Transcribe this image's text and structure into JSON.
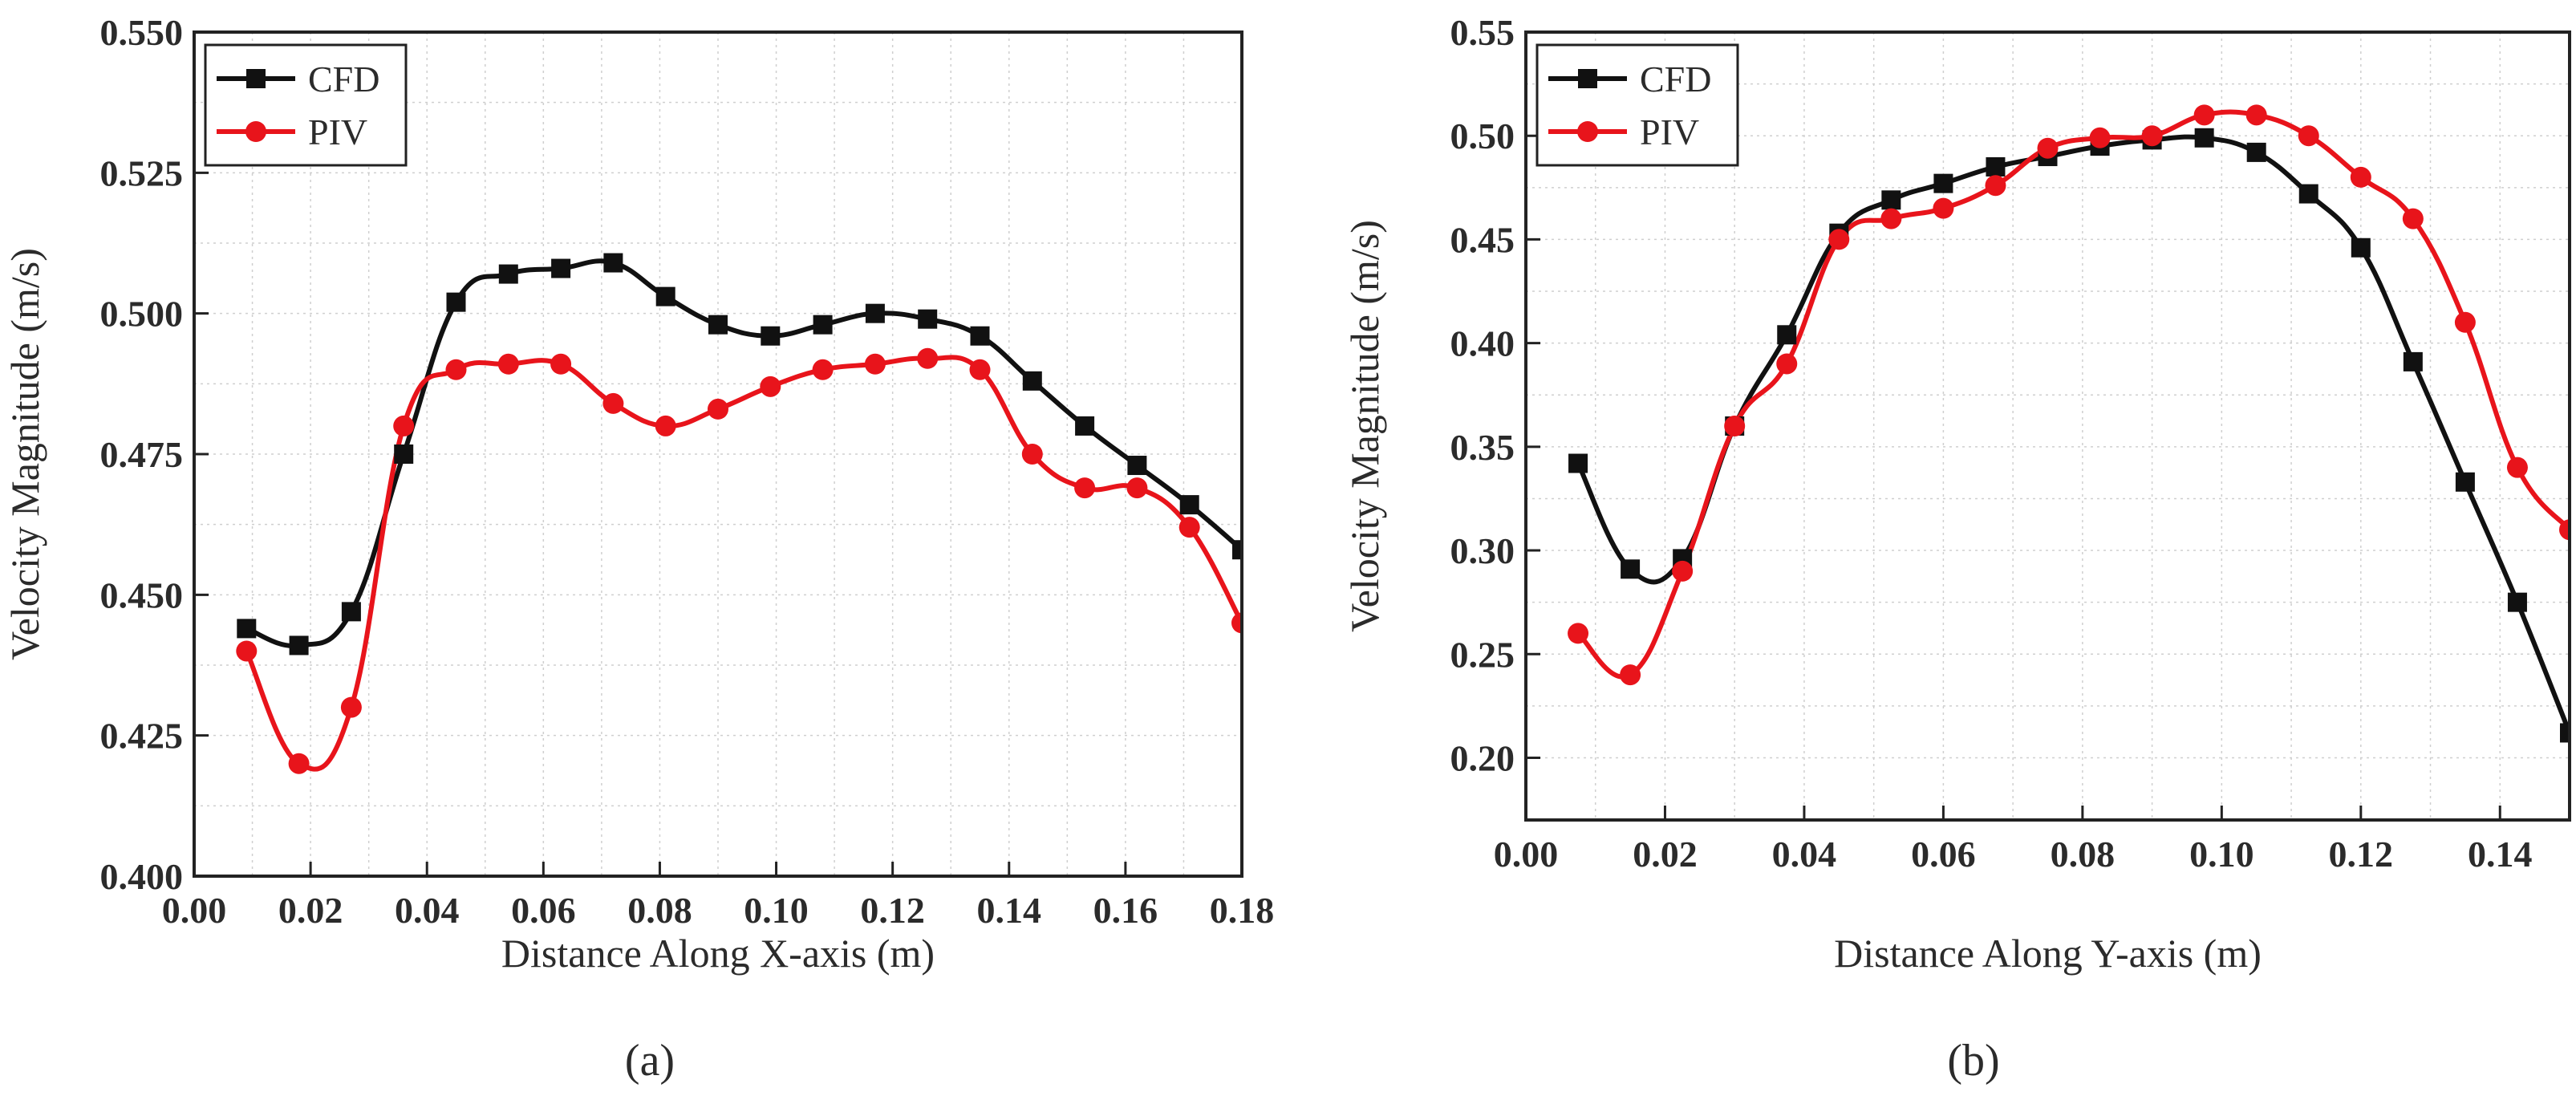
{
  "chart_data": [
    {
      "type": "line",
      "caption": "(a)",
      "xlabel": "Distance Along X-axis (m)",
      "ylabel": "Velocity Magnitude (m/s)",
      "xlim": [
        0.0,
        0.18
      ],
      "ylim": [
        0.4,
        0.55
      ],
      "xticks": [
        "0.00",
        "0.02",
        "0.04",
        "0.06",
        "0.08",
        "0.10",
        "0.12",
        "0.14",
        "0.16",
        "0.18"
      ],
      "yticks": [
        "0.400",
        "0.425",
        "0.450",
        "0.475",
        "0.500",
        "0.525",
        "0.550"
      ],
      "grid": true,
      "legend": "top-left",
      "series": [
        {
          "name": "CFD",
          "color": "#111111",
          "marker": "square",
          "x": [
            0.009,
            0.018,
            0.027,
            0.036,
            0.045,
            0.054,
            0.063,
            0.072,
            0.081,
            0.09,
            0.099,
            0.108,
            0.117,
            0.126,
            0.135,
            0.144,
            0.153,
            0.162,
            0.171,
            0.18
          ],
          "y": [
            0.444,
            0.441,
            0.447,
            0.475,
            0.502,
            0.507,
            0.508,
            0.509,
            0.503,
            0.498,
            0.496,
            0.498,
            0.5,
            0.499,
            0.496,
            0.488,
            0.48,
            0.473,
            0.466,
            0.458
          ]
        },
        {
          "name": "PIV",
          "color": "#e8141b",
          "marker": "circle",
          "x": [
            0.009,
            0.018,
            0.027,
            0.036,
            0.045,
            0.054,
            0.063,
            0.072,
            0.081,
            0.09,
            0.099,
            0.108,
            0.117,
            0.126,
            0.135,
            0.144,
            0.153,
            0.162,
            0.171,
            0.18
          ],
          "y": [
            0.44,
            0.42,
            0.43,
            0.48,
            0.49,
            0.491,
            0.491,
            0.484,
            0.48,
            0.483,
            0.487,
            0.49,
            0.491,
            0.492,
            0.49,
            0.475,
            0.469,
            0.469,
            0.462,
            0.445
          ]
        }
      ]
    },
    {
      "type": "line",
      "caption": "(b)",
      "xlabel": "Distance Along Y-axis (m)",
      "ylabel": "Velocity Magnitude (m/s)",
      "xlim": [
        0.0,
        0.15
      ],
      "ylim": [
        0.17,
        0.55
      ],
      "xticks": [
        "0.00",
        "0.02",
        "0.04",
        "0.06",
        "0.08",
        "0.10",
        "0.12",
        "0.14"
      ],
      "yticks": [
        "0.20",
        "0.25",
        "0.30",
        "0.35",
        "0.40",
        "0.45",
        "0.50",
        "0.55"
      ],
      "grid": true,
      "legend": "top-left",
      "series": [
        {
          "name": "CFD",
          "color": "#111111",
          "marker": "square",
          "x": [
            0.0075,
            0.015,
            0.0225,
            0.03,
            0.0375,
            0.045,
            0.0525,
            0.06,
            0.0675,
            0.075,
            0.0825,
            0.09,
            0.0975,
            0.105,
            0.1125,
            0.12,
            0.1275,
            0.135,
            0.1425,
            0.15
          ],
          "y": [
            0.342,
            0.291,
            0.296,
            0.36,
            0.404,
            0.453,
            0.469,
            0.477,
            0.485,
            0.49,
            0.495,
            0.498,
            0.499,
            0.492,
            0.472,
            0.446,
            0.391,
            0.333,
            0.275,
            0.212
          ]
        },
        {
          "name": "PIV",
          "color": "#e8141b",
          "marker": "circle",
          "x": [
            0.0075,
            0.015,
            0.0225,
            0.03,
            0.0375,
            0.045,
            0.0525,
            0.06,
            0.0675,
            0.075,
            0.0825,
            0.09,
            0.0975,
            0.105,
            0.1125,
            0.12,
            0.1275,
            0.135,
            0.1425,
            0.15
          ],
          "y": [
            0.26,
            0.24,
            0.29,
            0.36,
            0.39,
            0.45,
            0.46,
            0.465,
            0.476,
            0.494,
            0.499,
            0.5,
            0.51,
            0.51,
            0.5,
            0.48,
            0.46,
            0.41,
            0.34,
            0.31
          ]
        }
      ]
    }
  ]
}
